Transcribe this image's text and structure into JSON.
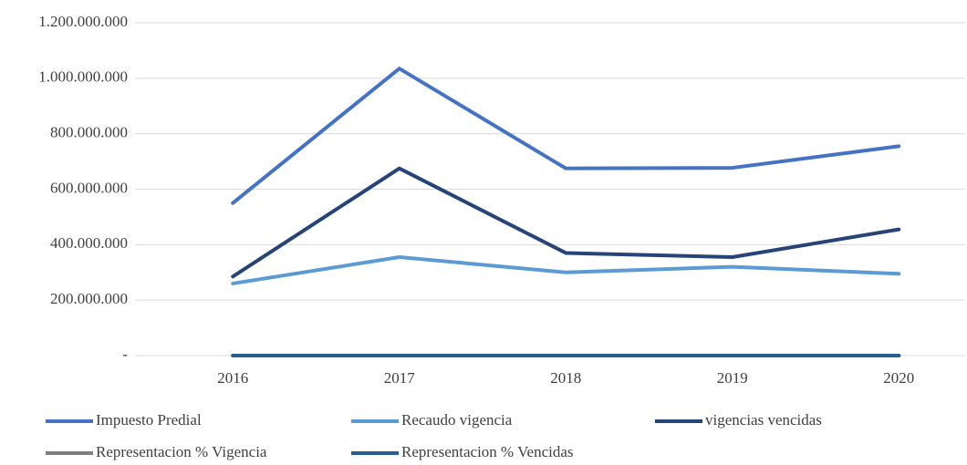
{
  "chart_data": {
    "type": "line",
    "categories": [
      "2016",
      "2017",
      "2018",
      "2019",
      "2020"
    ],
    "series": [
      {
        "name": "Impuesto Predial",
        "color": "#4472c4",
        "values": [
          550000000,
          1035000000,
          675000000,
          677000000,
          755000000
        ]
      },
      {
        "name": "Recaudo vigencia",
        "color": "#5b9bd5",
        "values": [
          260000000,
          355000000,
          300000000,
          320000000,
          295000000
        ]
      },
      {
        "name": "vigencias vencidas",
        "color": "#264478",
        "values": [
          285000000,
          675000000,
          370000000,
          355000000,
          455000000
        ]
      },
      {
        "name": "Representacion % Vigencia",
        "color": "#7f7f7f",
        "values": [
          0,
          0,
          0,
          0,
          0
        ]
      },
      {
        "name": "Representacion % Vencidas",
        "color": "#255e91",
        "values": [
          0,
          0,
          0,
          0,
          0
        ]
      }
    ],
    "ylim": [
      0,
      1200000000
    ],
    "yticks": [
      {
        "value": 0,
        "label": "-"
      },
      {
        "value": 200000000,
        "label": "200.000.000"
      },
      {
        "value": 400000000,
        "label": "400.000.000"
      },
      {
        "value": 600000000,
        "label": "600.000.000"
      },
      {
        "value": 800000000,
        "label": "800.000.000"
      },
      {
        "value": 1000000000,
        "label": "1.000.000.000"
      },
      {
        "value": 1200000000,
        "label": "1.200.000.000"
      }
    ],
    "grid": true
  }
}
